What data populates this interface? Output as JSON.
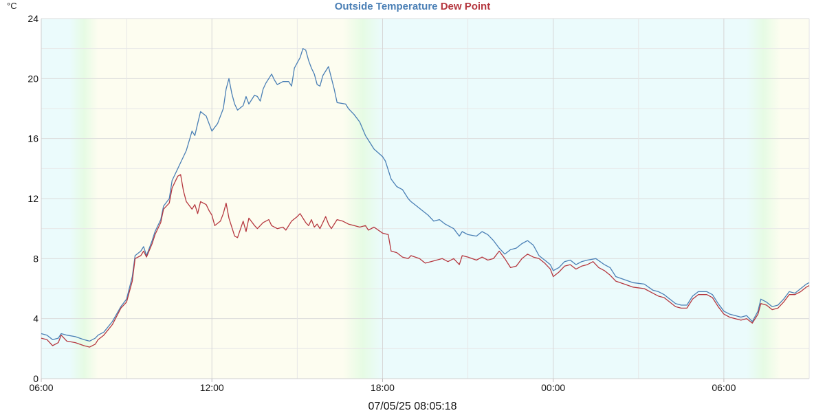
{
  "chart_data": {
    "type": "line",
    "title": "",
    "xlabel": "07/05/25 08:05:18",
    "ylabel": "°C",
    "ylim": [
      0,
      24
    ],
    "yticks": [
      0,
      4,
      8,
      12,
      16,
      20,
      24
    ],
    "xticks": [
      "06:00",
      "12:00",
      "18:00",
      "00:00",
      "06:00"
    ],
    "xtick_hours": [
      0,
      6,
      12,
      18,
      24
    ],
    "xlim_hours": [
      0,
      27
    ],
    "grid": true,
    "legend_position": "top-center",
    "background_periods": [
      {
        "phase": "night",
        "start": 0,
        "end": 1.0
      },
      {
        "phase": "dawn",
        "start": 1.0,
        "end": 2.0
      },
      {
        "phase": "day",
        "start": 2.0,
        "end": 10.6
      },
      {
        "phase": "dusk",
        "start": 10.6,
        "end": 12.0
      },
      {
        "phase": "night",
        "start": 12.0,
        "end": 24.8
      },
      {
        "phase": "dawn",
        "start": 24.8,
        "end": 26.0
      },
      {
        "phase": "day",
        "start": 26.0,
        "end": 27.0
      }
    ],
    "series": [
      {
        "name": "Outside Temperature",
        "color": "#4a7fb5",
        "points": [
          [
            0,
            3.0
          ],
          [
            0.2,
            2.9
          ],
          [
            0.4,
            2.6
          ],
          [
            0.6,
            2.7
          ],
          [
            0.7,
            3.0
          ],
          [
            0.9,
            2.9
          ],
          [
            1.2,
            2.8
          ],
          [
            1.5,
            2.6
          ],
          [
            1.7,
            2.5
          ],
          [
            1.9,
            2.7
          ],
          [
            2.0,
            2.9
          ],
          [
            2.2,
            3.1
          ],
          [
            2.5,
            3.8
          ],
          [
            2.8,
            4.8
          ],
          [
            3.0,
            5.3
          ],
          [
            3.2,
            6.8
          ],
          [
            3.3,
            8.2
          ],
          [
            3.5,
            8.5
          ],
          [
            3.6,
            8.8
          ],
          [
            3.7,
            8.2
          ],
          [
            3.9,
            9.2
          ],
          [
            4.0,
            9.8
          ],
          [
            4.2,
            10.6
          ],
          [
            4.3,
            11.5
          ],
          [
            4.5,
            12.0
          ],
          [
            4.6,
            13.2
          ],
          [
            4.8,
            14.0
          ],
          [
            4.9,
            14.4
          ],
          [
            5.1,
            15.2
          ],
          [
            5.3,
            16.5
          ],
          [
            5.4,
            16.2
          ],
          [
            5.5,
            17.0
          ],
          [
            5.6,
            17.8
          ],
          [
            5.8,
            17.5
          ],
          [
            6.0,
            16.5
          ],
          [
            6.2,
            17.0
          ],
          [
            6.4,
            18.0
          ],
          [
            6.5,
            19.3
          ],
          [
            6.6,
            20.0
          ],
          [
            6.7,
            19.0
          ],
          [
            6.8,
            18.3
          ],
          [
            6.9,
            17.9
          ],
          [
            7.1,
            18.2
          ],
          [
            7.2,
            18.8
          ],
          [
            7.3,
            18.3
          ],
          [
            7.5,
            18.9
          ],
          [
            7.6,
            18.8
          ],
          [
            7.7,
            18.5
          ],
          [
            7.8,
            19.3
          ],
          [
            7.9,
            19.7
          ],
          [
            8.1,
            20.3
          ],
          [
            8.2,
            19.9
          ],
          [
            8.3,
            19.6
          ],
          [
            8.5,
            19.8
          ],
          [
            8.7,
            19.8
          ],
          [
            8.8,
            19.5
          ],
          [
            8.9,
            20.7
          ],
          [
            9.1,
            21.4
          ],
          [
            9.2,
            22.0
          ],
          [
            9.3,
            21.9
          ],
          [
            9.4,
            21.2
          ],
          [
            9.5,
            20.7
          ],
          [
            9.6,
            20.3
          ],
          [
            9.7,
            19.6
          ],
          [
            9.8,
            19.5
          ],
          [
            9.9,
            20.2
          ],
          [
            10.1,
            20.8
          ],
          [
            10.3,
            19.3
          ],
          [
            10.4,
            18.4
          ],
          [
            10.7,
            18.3
          ],
          [
            10.8,
            18.0
          ],
          [
            11.0,
            17.6
          ],
          [
            11.2,
            17.1
          ],
          [
            11.4,
            16.2
          ],
          [
            11.5,
            15.9
          ],
          [
            11.7,
            15.3
          ],
          [
            12.0,
            14.8
          ],
          [
            12.1,
            14.5
          ],
          [
            12.3,
            13.3
          ],
          [
            12.5,
            12.8
          ],
          [
            12.7,
            12.6
          ],
          [
            12.9,
            12.0
          ],
          [
            13.0,
            11.8
          ],
          [
            13.2,
            11.5
          ],
          [
            13.4,
            11.2
          ],
          [
            13.6,
            10.9
          ],
          [
            13.8,
            10.5
          ],
          [
            14.0,
            10.6
          ],
          [
            14.2,
            10.3
          ],
          [
            14.5,
            10.0
          ],
          [
            14.7,
            9.5
          ],
          [
            14.8,
            9.8
          ],
          [
            15.0,
            9.6
          ],
          [
            15.3,
            9.5
          ],
          [
            15.5,
            9.8
          ],
          [
            15.7,
            9.6
          ],
          [
            15.9,
            9.2
          ],
          [
            16.1,
            8.7
          ],
          [
            16.3,
            8.3
          ],
          [
            16.5,
            8.6
          ],
          [
            16.7,
            8.7
          ],
          [
            16.9,
            9.0
          ],
          [
            17.1,
            9.2
          ],
          [
            17.3,
            8.9
          ],
          [
            17.5,
            8.2
          ],
          [
            17.7,
            7.9
          ],
          [
            17.9,
            7.6
          ],
          [
            18.0,
            7.2
          ],
          [
            18.2,
            7.4
          ],
          [
            18.4,
            7.8
          ],
          [
            18.6,
            7.9
          ],
          [
            18.8,
            7.6
          ],
          [
            19.0,
            7.8
          ],
          [
            19.2,
            7.9
          ],
          [
            19.5,
            8.0
          ],
          [
            19.8,
            7.6
          ],
          [
            20.0,
            7.4
          ],
          [
            20.2,
            6.8
          ],
          [
            20.5,
            6.6
          ],
          [
            20.8,
            6.4
          ],
          [
            21.2,
            6.3
          ],
          [
            21.5,
            5.9
          ],
          [
            21.7,
            5.8
          ],
          [
            21.9,
            5.6
          ],
          [
            22.1,
            5.3
          ],
          [
            22.3,
            5.0
          ],
          [
            22.5,
            4.9
          ],
          [
            22.7,
            4.9
          ],
          [
            22.9,
            5.5
          ],
          [
            23.1,
            5.8
          ],
          [
            23.4,
            5.8
          ],
          [
            23.6,
            5.6
          ],
          [
            23.8,
            5.0
          ],
          [
            24.0,
            4.5
          ],
          [
            24.2,
            4.3
          ],
          [
            24.4,
            4.2
          ],
          [
            24.6,
            4.1
          ],
          [
            24.8,
            4.2
          ],
          [
            25.0,
            3.8
          ],
          [
            25.2,
            4.5
          ],
          [
            25.3,
            5.3
          ],
          [
            25.5,
            5.1
          ],
          [
            25.7,
            4.8
          ],
          [
            25.9,
            4.9
          ],
          [
            26.1,
            5.3
          ],
          [
            26.3,
            5.8
          ],
          [
            26.5,
            5.7
          ],
          [
            26.7,
            6.0
          ],
          [
            26.9,
            6.3
          ],
          [
            27.0,
            6.4
          ]
        ]
      },
      {
        "name": "Dew Point",
        "color": "#b5373f",
        "points": [
          [
            0,
            2.7
          ],
          [
            0.2,
            2.6
          ],
          [
            0.4,
            2.2
          ],
          [
            0.6,
            2.4
          ],
          [
            0.7,
            2.9
          ],
          [
            0.9,
            2.5
          ],
          [
            1.2,
            2.4
          ],
          [
            1.5,
            2.2
          ],
          [
            1.7,
            2.1
          ],
          [
            1.9,
            2.3
          ],
          [
            2.0,
            2.6
          ],
          [
            2.2,
            2.9
          ],
          [
            2.5,
            3.6
          ],
          [
            2.8,
            4.7
          ],
          [
            3.0,
            5.1
          ],
          [
            3.2,
            6.5
          ],
          [
            3.3,
            8.0
          ],
          [
            3.5,
            8.2
          ],
          [
            3.6,
            8.5
          ],
          [
            3.7,
            8.1
          ],
          [
            3.9,
            9.0
          ],
          [
            4.0,
            9.6
          ],
          [
            4.2,
            10.4
          ],
          [
            4.3,
            11.3
          ],
          [
            4.5,
            11.7
          ],
          [
            4.6,
            12.7
          ],
          [
            4.8,
            13.5
          ],
          [
            4.9,
            13.6
          ],
          [
            5.0,
            12.5
          ],
          [
            5.1,
            11.8
          ],
          [
            5.3,
            11.3
          ],
          [
            5.4,
            11.6
          ],
          [
            5.5,
            11.0
          ],
          [
            5.6,
            11.8
          ],
          [
            5.8,
            11.6
          ],
          [
            5.9,
            11.2
          ],
          [
            6.0,
            10.9
          ],
          [
            6.1,
            10.2
          ],
          [
            6.3,
            10.5
          ],
          [
            6.4,
            11.0
          ],
          [
            6.5,
            11.7
          ],
          [
            6.6,
            10.7
          ],
          [
            6.8,
            9.5
          ],
          [
            6.9,
            9.4
          ],
          [
            7.1,
            10.5
          ],
          [
            7.2,
            9.8
          ],
          [
            7.3,
            10.7
          ],
          [
            7.5,
            10.2
          ],
          [
            7.6,
            10.0
          ],
          [
            7.8,
            10.4
          ],
          [
            8.0,
            10.6
          ],
          [
            8.1,
            10.2
          ],
          [
            8.3,
            10.0
          ],
          [
            8.5,
            10.1
          ],
          [
            8.6,
            9.9
          ],
          [
            8.8,
            10.5
          ],
          [
            9.0,
            10.8
          ],
          [
            9.1,
            11.0
          ],
          [
            9.2,
            10.7
          ],
          [
            9.3,
            10.4
          ],
          [
            9.4,
            10.2
          ],
          [
            9.5,
            10.6
          ],
          [
            9.6,
            10.1
          ],
          [
            9.7,
            10.3
          ],
          [
            9.8,
            10.0
          ],
          [
            9.9,
            10.4
          ],
          [
            10.0,
            10.8
          ],
          [
            10.1,
            10.3
          ],
          [
            10.2,
            10.0
          ],
          [
            10.4,
            10.6
          ],
          [
            10.6,
            10.5
          ],
          [
            10.8,
            10.3
          ],
          [
            11.0,
            10.2
          ],
          [
            11.2,
            10.1
          ],
          [
            11.4,
            10.2
          ],
          [
            11.5,
            9.9
          ],
          [
            11.7,
            10.1
          ],
          [
            12.0,
            9.7
          ],
          [
            12.2,
            9.6
          ],
          [
            12.3,
            8.5
          ],
          [
            12.5,
            8.4
          ],
          [
            12.7,
            8.1
          ],
          [
            12.9,
            8.0
          ],
          [
            13.0,
            8.2
          ],
          [
            13.3,
            8.0
          ],
          [
            13.5,
            7.7
          ],
          [
            13.7,
            7.8
          ],
          [
            13.9,
            7.9
          ],
          [
            14.1,
            8.0
          ],
          [
            14.3,
            7.8
          ],
          [
            14.5,
            8.0
          ],
          [
            14.7,
            7.6
          ],
          [
            14.8,
            8.2
          ],
          [
            15.0,
            8.1
          ],
          [
            15.3,
            7.9
          ],
          [
            15.5,
            8.1
          ],
          [
            15.7,
            7.9
          ],
          [
            15.9,
            8.0
          ],
          [
            16.1,
            8.5
          ],
          [
            16.3,
            8.0
          ],
          [
            16.5,
            7.4
          ],
          [
            16.7,
            7.5
          ],
          [
            16.9,
            8.0
          ],
          [
            17.1,
            8.3
          ],
          [
            17.3,
            8.1
          ],
          [
            17.5,
            8.0
          ],
          [
            17.7,
            7.7
          ],
          [
            17.9,
            7.3
          ],
          [
            18.0,
            6.8
          ],
          [
            18.2,
            7.1
          ],
          [
            18.4,
            7.5
          ],
          [
            18.6,
            7.6
          ],
          [
            18.8,
            7.3
          ],
          [
            19.0,
            7.5
          ],
          [
            19.2,
            7.6
          ],
          [
            19.4,
            7.8
          ],
          [
            19.6,
            7.4
          ],
          [
            19.8,
            7.2
          ],
          [
            20.0,
            6.9
          ],
          [
            20.2,
            6.5
          ],
          [
            20.5,
            6.3
          ],
          [
            20.8,
            6.1
          ],
          [
            21.2,
            6.0
          ],
          [
            21.5,
            5.7
          ],
          [
            21.7,
            5.5
          ],
          [
            21.9,
            5.4
          ],
          [
            22.1,
            5.1
          ],
          [
            22.3,
            4.8
          ],
          [
            22.5,
            4.7
          ],
          [
            22.7,
            4.7
          ],
          [
            22.9,
            5.3
          ],
          [
            23.1,
            5.6
          ],
          [
            23.4,
            5.6
          ],
          [
            23.6,
            5.4
          ],
          [
            23.8,
            4.8
          ],
          [
            24.0,
            4.3
          ],
          [
            24.2,
            4.1
          ],
          [
            24.4,
            4.0
          ],
          [
            24.6,
            3.9
          ],
          [
            24.8,
            4.0
          ],
          [
            25.0,
            3.7
          ],
          [
            25.2,
            4.3
          ],
          [
            25.3,
            5.0
          ],
          [
            25.5,
            4.9
          ],
          [
            25.7,
            4.6
          ],
          [
            25.9,
            4.7
          ],
          [
            26.1,
            5.1
          ],
          [
            26.3,
            5.6
          ],
          [
            26.5,
            5.6
          ],
          [
            26.7,
            5.8
          ],
          [
            26.9,
            6.1
          ],
          [
            27.0,
            6.2
          ]
        ]
      }
    ]
  }
}
